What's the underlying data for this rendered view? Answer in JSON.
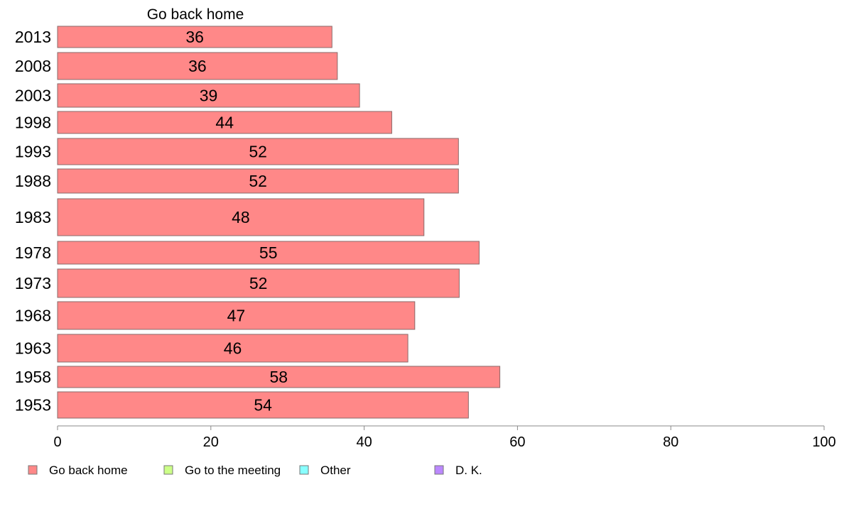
{
  "chart_data": {
    "type": "bar",
    "orientation": "horizontal",
    "title": "Go back home",
    "categories": [
      "2013",
      "2008",
      "2003",
      "1998",
      "1993",
      "1988",
      "1983",
      "1978",
      "1973",
      "1968",
      "1963",
      "1958",
      "1953"
    ],
    "series": [
      {
        "name": "Go back home",
        "color": "#ff8888",
        "values": [
          36,
          36,
          39,
          44,
          52,
          52,
          48,
          55,
          52,
          47,
          46,
          58,
          54
        ],
        "value_positions": [
          35.8,
          36.5,
          39.4,
          43.6,
          52.3,
          52.3,
          47.8,
          55.0,
          52.4,
          46.6,
          45.7,
          57.7,
          53.6
        ]
      }
    ],
    "xlim": [
      0,
      100
    ],
    "xticks": [
      0,
      20,
      40,
      60,
      80,
      100
    ],
    "xlabel": "",
    "ylabel": "",
    "grid": false,
    "legend": {
      "placement": "bottom",
      "entries": [
        {
          "label": "Go back home",
          "color": "#ff8888"
        },
        {
          "label": "Go to the meeting",
          "color": "#ccff88"
        },
        {
          "label": "Other",
          "color": "#88ffff"
        },
        {
          "label": "D. K.",
          "color": "#bb88ff"
        }
      ]
    }
  }
}
